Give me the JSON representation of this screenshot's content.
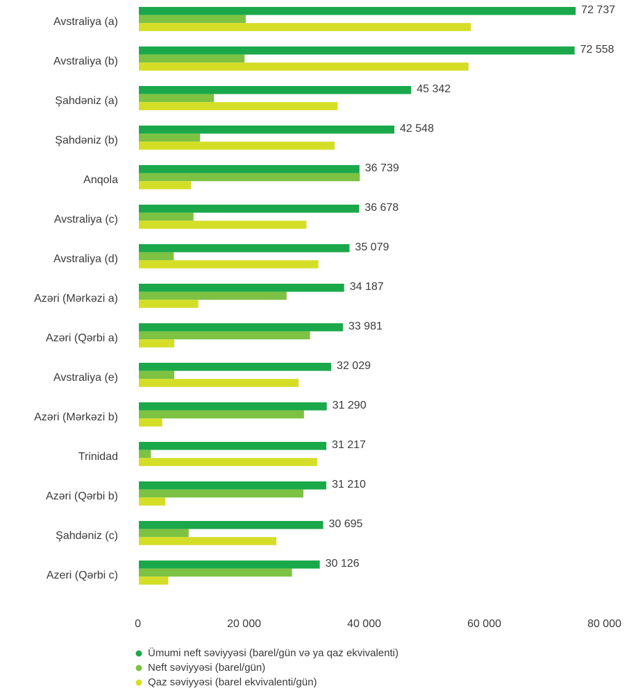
{
  "chart_data": {
    "type": "hbar",
    "categories": [
      "Avstraliya (a)",
      "Avstraliya (b)",
      "Şahdəniz (a)",
      "Şahdəniz (b)",
      "Anqola",
      "Avstraliya (c)",
      "Avstraliya (d)",
      "Azəri (Mərkəzi a)",
      "Azəri (Qərbi a)",
      "Avstraliya (e)",
      "Azəri (Mərkəzi b)",
      "Trinidad",
      "Azəri (Qərbi b)",
      "Şahdəniz (c)",
      "Azeri (Qərbi c)"
    ],
    "series": [
      {
        "name": "Ümumi neft səviyyəsi (barel/gün və ya qaz ekvivalenti)",
        "color": "#1aa84a",
        "values": [
          72737,
          72558,
          45342,
          42548,
          36739,
          36678,
          35079,
          34187,
          33981,
          32029,
          31290,
          31217,
          31210,
          30695,
          30126
        ],
        "value_labels": [
          "72 737",
          "72 558",
          "45 342",
          "42 548",
          "36 739",
          "36 678",
          "35 079",
          "34 187",
          "33 981",
          "32 029",
          "31 290",
          "31 217",
          "31 210",
          "30 695",
          "30 126"
        ]
      },
      {
        "name": "Neft səviyyəsi (barel/gün)",
        "color": "#7dc242",
        "values": [
          17800,
          17600,
          12500,
          10200,
          36800,
          9100,
          5800,
          24600,
          28500,
          5900,
          27500,
          2000,
          27400,
          8300,
          25500
        ]
      },
      {
        "name": "Qaz səviyyəsi (barel ekvivalenti/gün)",
        "color": "#d4de27",
        "values": [
          55300,
          54900,
          33100,
          32600,
          8700,
          27900,
          29900,
          9900,
          5900,
          26600,
          3900,
          29700,
          4400,
          22900,
          4900
        ]
      }
    ],
    "xlim": [
      0,
      80000
    ],
    "xticks": [
      0,
      {
        "value": 20000,
        "label": "20 000"
      },
      {
        "value": 40000,
        "label": "40 000"
      },
      {
        "value": 60000,
        "label": "60 000"
      },
      {
        "value": 80000,
        "label": "80 000"
      }
    ]
  }
}
